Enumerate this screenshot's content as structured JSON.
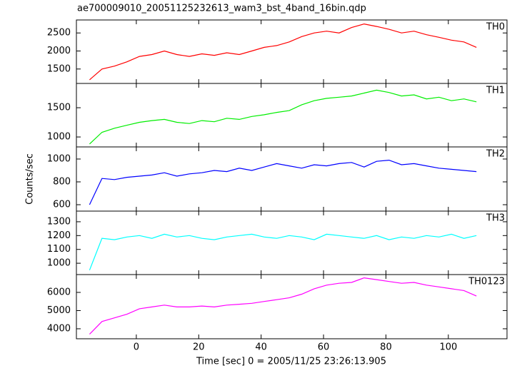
{
  "title": "ae700009010_20051125232613_wam3_bst_4band_16bin.qdp",
  "xlabel": "Time [sec] 0 = 2005/11/25 23:26:13.905",
  "ylabel": "Counts/sec",
  "chart_data": [
    {
      "type": "line",
      "xlim": [
        -19.2,
        118.8
      ],
      "xticks": [
        0,
        20,
        40,
        60,
        80,
        100
      ],
      "ylim": [
        1100,
        2860
      ],
      "yticks": [
        1500,
        2000,
        2500
      ],
      "x": [
        -15,
        -11,
        -7,
        -3,
        1,
        5,
        9,
        13,
        17,
        21,
        25,
        29,
        33,
        37,
        41,
        45,
        49,
        53,
        57,
        61,
        65,
        69,
        73,
        77,
        81,
        85,
        89,
        93,
        97,
        101,
        105,
        109
      ],
      "series": [
        {
          "name": "TH0",
          "color": "#ff0000",
          "values": [
            1200,
            1500,
            1580,
            1700,
            1850,
            1900,
            2000,
            1900,
            1850,
            1920,
            1880,
            1950,
            1900,
            2000,
            2100,
            2150,
            2250,
            2400,
            2500,
            2550,
            2500,
            2650,
            2750,
            2680,
            2600,
            2500,
            2550,
            2450,
            2380,
            2300,
            2250,
            2100
          ]
        }
      ]
    },
    {
      "type": "line",
      "xlim": [
        -19.2,
        118.8
      ],
      "xticks": [
        0,
        20,
        40,
        60,
        80,
        100
      ],
      "ylim": [
        830,
        1915
      ],
      "yticks": [
        1000,
        1500
      ],
      "x": [
        -15,
        -11,
        -7,
        -3,
        1,
        5,
        9,
        13,
        17,
        21,
        25,
        29,
        33,
        37,
        41,
        45,
        49,
        53,
        57,
        61,
        65,
        69,
        73,
        77,
        81,
        85,
        89,
        93,
        97,
        101,
        105,
        109
      ],
      "series": [
        {
          "name": "TH1",
          "color": "#00ee00",
          "values": [
            880,
            1080,
            1150,
            1200,
            1250,
            1280,
            1300,
            1250,
            1230,
            1280,
            1260,
            1320,
            1300,
            1350,
            1380,
            1420,
            1450,
            1550,
            1620,
            1660,
            1680,
            1700,
            1750,
            1800,
            1760,
            1700,
            1720,
            1650,
            1680,
            1620,
            1650,
            1600
          ]
        }
      ]
    },
    {
      "type": "line",
      "xlim": [
        -19.2,
        118.8
      ],
      "xticks": [
        0,
        20,
        40,
        60,
        80,
        100
      ],
      "ylim": [
        544,
        1106
      ],
      "yticks": [
        600,
        800,
        1000
      ],
      "x": [
        -15,
        -11,
        -7,
        -3,
        1,
        5,
        9,
        13,
        17,
        21,
        25,
        29,
        33,
        37,
        41,
        45,
        49,
        53,
        57,
        61,
        65,
        69,
        73,
        77,
        81,
        85,
        89,
        93,
        97,
        101,
        105,
        109
      ],
      "series": [
        {
          "name": "TH2",
          "color": "#0000ff",
          "values": [
            600,
            830,
            820,
            840,
            850,
            860,
            880,
            850,
            870,
            880,
            900,
            890,
            920,
            900,
            930,
            960,
            940,
            920,
            950,
            940,
            960,
            970,
            930,
            980,
            990,
            950,
            960,
            940,
            920,
            910,
            900,
            890
          ]
        }
      ]
    },
    {
      "type": "line",
      "xlim": [
        -19.2,
        118.8
      ],
      "xticks": [
        0,
        20,
        40,
        60,
        80,
        100
      ],
      "ylim": [
        918,
        1377
      ],
      "yticks": [
        1000,
        1100,
        1200,
        1300
      ],
      "x": [
        -15,
        -11,
        -7,
        -3,
        1,
        5,
        9,
        13,
        17,
        21,
        25,
        29,
        33,
        37,
        41,
        45,
        49,
        53,
        57,
        61,
        65,
        69,
        73,
        77,
        81,
        85,
        89,
        93,
        97,
        101,
        105,
        109
      ],
      "series": [
        {
          "name": "TH3",
          "color": "#00ffff",
          "values": [
            950,
            1180,
            1170,
            1190,
            1200,
            1180,
            1210,
            1190,
            1200,
            1180,
            1170,
            1190,
            1200,
            1210,
            1190,
            1180,
            1200,
            1190,
            1170,
            1210,
            1200,
            1190,
            1180,
            1200,
            1170,
            1190,
            1180,
            1200,
            1190,
            1210,
            1180,
            1200
          ]
        }
      ]
    },
    {
      "type": "line",
      "xlim": [
        -19.2,
        118.8
      ],
      "xticks": [
        0,
        20,
        40,
        60,
        80,
        100
      ],
      "ylim": [
        3450,
        6980
      ],
      "yticks": [
        4000,
        5000,
        6000
      ],
      "x": [
        -15,
        -11,
        -7,
        -3,
        1,
        5,
        9,
        13,
        17,
        21,
        25,
        29,
        33,
        37,
        41,
        45,
        49,
        53,
        57,
        61,
        65,
        69,
        73,
        77,
        81,
        85,
        89,
        93,
        97,
        101,
        105,
        109
      ],
      "series": [
        {
          "name": "TH0123",
          "color": "#ff00ff",
          "values": [
            3700,
            4400,
            4600,
            4800,
            5100,
            5200,
            5300,
            5200,
            5200,
            5250,
            5200,
            5300,
            5350,
            5400,
            5500,
            5600,
            5700,
            5900,
            6200,
            6400,
            6500,
            6550,
            6800,
            6700,
            6600,
            6500,
            6550,
            6400,
            6300,
            6200,
            6100,
            5800
          ]
        }
      ]
    }
  ]
}
